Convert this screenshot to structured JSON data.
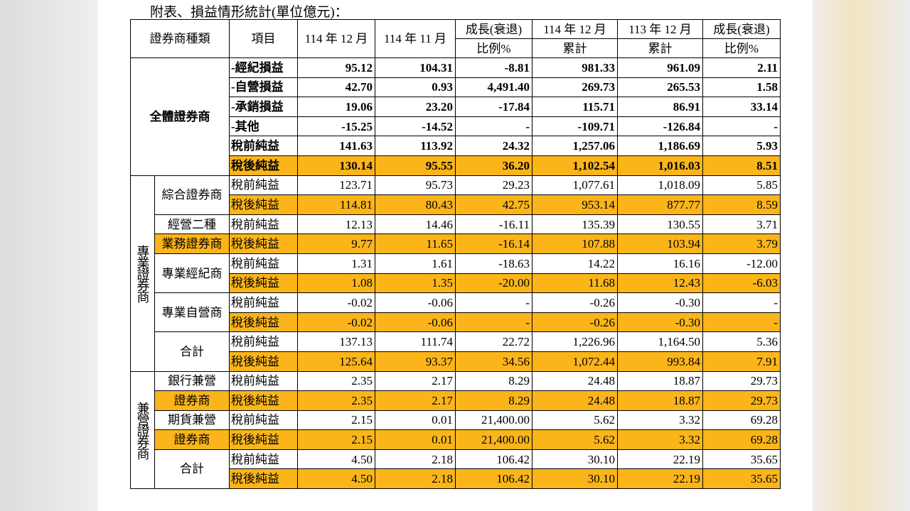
{
  "title": "附表、損益情形統計(單位億元)：",
  "table": {
    "columns": [
      [
        "證券商種類"
      ],
      [
        "項目"
      ],
      [
        "114 年 12 月"
      ],
      [
        "114 年 11 月"
      ],
      [
        "成長(衰退)",
        "比例%"
      ],
      [
        "114 年 12 月",
        "累計"
      ],
      [
        "113 年 12 月",
        "累計"
      ],
      [
        "成長(衰退)",
        "比例%"
      ]
    ],
    "groups": [
      {
        "label": "全體證券商",
        "rows": [
          {
            "item": "-經紀損益",
            "values": [
              "95.12",
              "104.31",
              "-8.81",
              "981.33",
              "961.09",
              "2.11"
            ]
          },
          {
            "item": "-自營損益",
            "values": [
              "42.70",
              "0.93",
              "4,491.40",
              "269.73",
              "265.53",
              "1.58"
            ]
          },
          {
            "item": "-承銷損益",
            "values": [
              "19.06",
              "23.20",
              "-17.84",
              "115.71",
              "86.91",
              "33.14"
            ]
          },
          {
            "item": "-其他",
            "values": [
              "-15.25",
              "-14.52",
              "-",
              "-109.71",
              "-126.84",
              "-"
            ]
          },
          {
            "item": "稅前純益",
            "values": [
              "141.63",
              "113.92",
              "24.32",
              "1,257.06",
              "1,186.69",
              "5.93"
            ]
          },
          {
            "item": "稅後純益",
            "values": [
              "130.14",
              "95.55",
              "36.20",
              "1,102.54",
              "1,016.03",
              "8.51"
            ]
          }
        ]
      },
      {
        "label": "專業證券商",
        "subgroups": [
          {
            "label": [
              "綜合證券商"
            ],
            "rows": [
              {
                "item": "稅前純益",
                "values": [
                  "123.71",
                  "95.73",
                  "29.23",
                  "1,077.61",
                  "1,018.09",
                  "5.85"
                ]
              },
              {
                "item": "稅後純益",
                "values": [
                  "114.81",
                  "80.43",
                  "42.75",
                  "953.14",
                  "877.77",
                  "8.59"
                ]
              }
            ]
          },
          {
            "label": [
              "經營二種",
              "業務證券商"
            ],
            "rows": [
              {
                "item": "稅前純益",
                "values": [
                  "12.13",
                  "14.46",
                  "-16.11",
                  "135.39",
                  "130.55",
                  "3.71"
                ]
              },
              {
                "item": "稅後純益",
                "values": [
                  "9.77",
                  "11.65",
                  "-16.14",
                  "107.88",
                  "103.94",
                  "3.79"
                ]
              }
            ]
          },
          {
            "label": [
              "專業經紀商"
            ],
            "rows": [
              {
                "item": "稅前純益",
                "values": [
                  "1.31",
                  "1.61",
                  "-18.63",
                  "14.22",
                  "16.16",
                  "-12.00"
                ]
              },
              {
                "item": "稅後純益",
                "values": [
                  "1.08",
                  "1.35",
                  "-20.00",
                  "11.68",
                  "12.43",
                  "-6.03"
                ]
              }
            ]
          },
          {
            "label": [
              "專業自營商"
            ],
            "rows": [
              {
                "item": "稅前純益",
                "values": [
                  "-0.02",
                  "-0.06",
                  "-",
                  "-0.26",
                  "-0.30",
                  "-"
                ]
              },
              {
                "item": "稅後純益",
                "values": [
                  "-0.02",
                  "-0.06",
                  "-",
                  "-0.26",
                  "-0.30",
                  "-"
                ]
              }
            ]
          },
          {
            "label": [
              "合計"
            ],
            "rows": [
              {
                "item": "稅前純益",
                "values": [
                  "137.13",
                  "111.74",
                  "22.72",
                  "1,226.96",
                  "1,164.50",
                  "5.36"
                ]
              },
              {
                "item": "稅後純益",
                "values": [
                  "125.64",
                  "93.37",
                  "34.56",
                  "1,072.44",
                  "993.84",
                  "7.91"
                ]
              }
            ]
          }
        ]
      },
      {
        "label": "兼營證券商",
        "subgroups": [
          {
            "label": [
              "銀行兼營",
              "證券商"
            ],
            "rows": [
              {
                "item": "稅前純益",
                "values": [
                  "2.35",
                  "2.17",
                  "8.29",
                  "24.48",
                  "18.87",
                  "29.73"
                ]
              },
              {
                "item": "稅後純益",
                "values": [
                  "2.35",
                  "2.17",
                  "8.29",
                  "24.48",
                  "18.87",
                  "29.73"
                ]
              }
            ]
          },
          {
            "label": [
              "期貨兼營",
              "證券商"
            ],
            "rows": [
              {
                "item": "稅前純益",
                "values": [
                  "2.15",
                  "0.01",
                  "21,400.00",
                  "5.62",
                  "3.32",
                  "69.28"
                ]
              },
              {
                "item": "稅後純益",
                "values": [
                  "2.15",
                  "0.01",
                  "21,400.00",
                  "5.62",
                  "3.32",
                  "69.28"
                ]
              }
            ]
          },
          {
            "label": [
              "合計"
            ],
            "rows": [
              {
                "item": "稅前純益",
                "values": [
                  "4.50",
                  "2.18",
                  "106.42",
                  "30.10",
                  "22.19",
                  "35.65"
                ]
              },
              {
                "item": "稅後純益",
                "values": [
                  "4.50",
                  "2.18",
                  "106.42",
                  "30.10",
                  "22.19",
                  "35.65"
                ]
              }
            ]
          }
        ]
      }
    ]
  }
}
